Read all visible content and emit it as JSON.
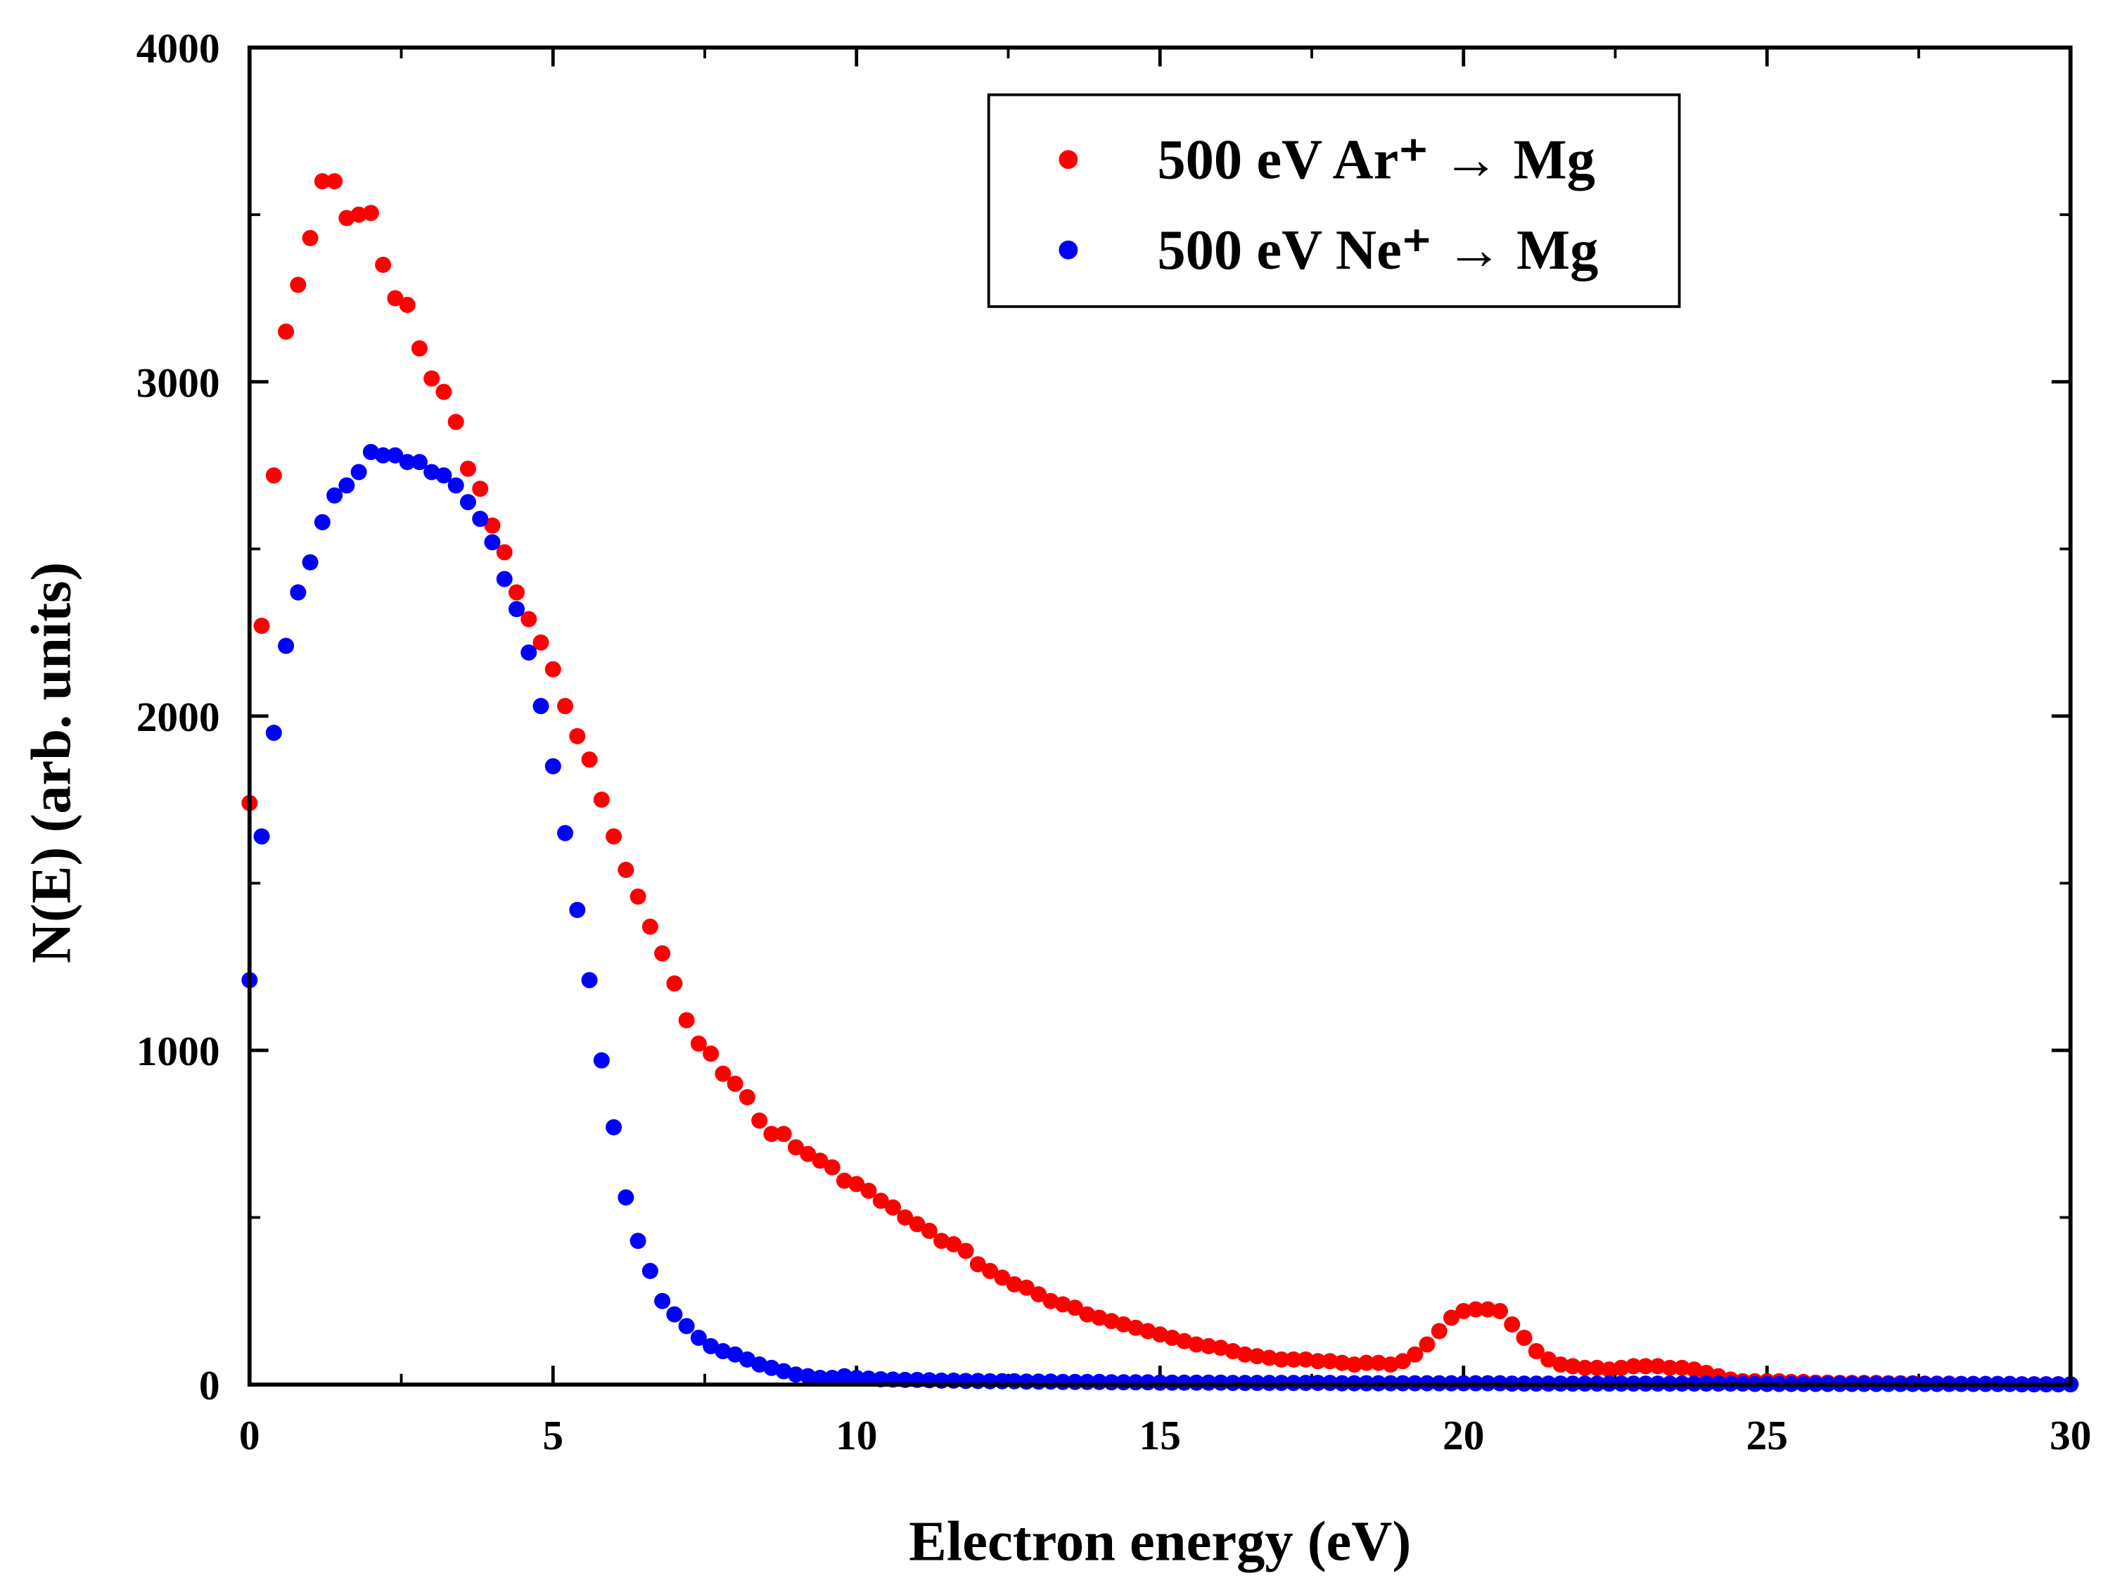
{
  "chart_data": {
    "type": "scatter",
    "xlabel": "Electron energy (eV)",
    "ylabel": "N(E) (arb. units)",
    "xlim": [
      0,
      30
    ],
    "ylim": [
      0,
      4000
    ],
    "xticks": [
      0,
      5,
      10,
      15,
      20,
      25,
      30
    ],
    "yticks": [
      0,
      1000,
      2000,
      3000,
      4000
    ],
    "legend": "upper right",
    "x": [
      0,
      0.2,
      0.4,
      0.6,
      0.8,
      1,
      1.2,
      1.4,
      1.6,
      1.8,
      2,
      2.2,
      2.4,
      2.6,
      2.8,
      3,
      3.2,
      3.4,
      3.6,
      3.8,
      4,
      4.2,
      4.4,
      4.6,
      4.8,
      5,
      5.2,
      5.4,
      5.6,
      5.8,
      6,
      6.2,
      6.4,
      6.6,
      6.8,
      7,
      7.2,
      7.4,
      7.6,
      7.8,
      8,
      8.2,
      8.4,
      8.6,
      8.8,
      9,
      9.2,
      9.4,
      9.6,
      9.8,
      10,
      10.2,
      10.4,
      10.6,
      10.8,
      11,
      11.2,
      11.4,
      11.6,
      11.8,
      12,
      12.2,
      12.4,
      12.6,
      12.8,
      13,
      13.2,
      13.4,
      13.6,
      13.8,
      14,
      14.2,
      14.4,
      14.6,
      14.8,
      15,
      15.2,
      15.4,
      15.6,
      15.8,
      16,
      16.2,
      16.4,
      16.6,
      16.8,
      17,
      17.2,
      17.4,
      17.6,
      17.8,
      18,
      18.2,
      18.4,
      18.6,
      18.8,
      19,
      19.2,
      19.4,
      19.6,
      19.8,
      20,
      20.2,
      20.4,
      20.6,
      20.8,
      21,
      21.2,
      21.4,
      21.6,
      21.8,
      22,
      22.2,
      22.4,
      22.6,
      22.8,
      23,
      23.2,
      23.4,
      23.6,
      23.8,
      24,
      24.2,
      24.4,
      24.6,
      24.8,
      25,
      25.2,
      25.4,
      25.6,
      25.8,
      26,
      26.2,
      26.4,
      26.6,
      26.8,
      27,
      27.2,
      27.4,
      27.6,
      27.8,
      28,
      28.2,
      28.4,
      28.6,
      28.8,
      29,
      29.2,
      29.4,
      29.6,
      29.8,
      30
    ],
    "series": [
      {
        "name": "500 eV Ar⁺ → Mg",
        "color": "#ff0000",
        "values": [
          1740,
          2270,
          2720,
          3150,
          3290,
          3430,
          3600,
          3600,
          3490,
          3500,
          3505,
          3350,
          3250,
          3230,
          3100,
          3010,
          2970,
          2880,
          2740,
          2680,
          2570,
          2490,
          2370,
          2290,
          2220,
          2140,
          2030,
          1940,
          1870,
          1750,
          1640,
          1540,
          1460,
          1370,
          1290,
          1200,
          1090,
          1020,
          990,
          930,
          900,
          860,
          790,
          750,
          750,
          710,
          690,
          670,
          650,
          610,
          600,
          580,
          550,
          530,
          500,
          480,
          460,
          430,
          420,
          400,
          360,
          340,
          320,
          300,
          290,
          270,
          250,
          240,
          230,
          210,
          200,
          190,
          180,
          170,
          160,
          150,
          140,
          130,
          120,
          115,
          110,
          100,
          90,
          85,
          80,
          75,
          75,
          75,
          70,
          70,
          65,
          60,
          65,
          65,
          60,
          70,
          90,
          120,
          160,
          200,
          220,
          225,
          225,
          220,
          180,
          140,
          100,
          75,
          60,
          55,
          50,
          50,
          45,
          50,
          55,
          55,
          55,
          50,
          50,
          45,
          35,
          25,
          15,
          10,
          10,
          10,
          10,
          8,
          8,
          6,
          6,
          5,
          5,
          5,
          5,
          4,
          4,
          4,
          3,
          3,
          3,
          2,
          2,
          2,
          2,
          2,
          1,
          1,
          1,
          1,
          1
        ]
      },
      {
        "name": "500 eV Ne⁺ → Mg",
        "color": "#0000ff",
        "values": [
          1210,
          1640,
          1950,
          2210,
          2370,
          2460,
          2580,
          2660,
          2690,
          2730,
          2790,
          2780,
          2780,
          2760,
          2760,
          2730,
          2720,
          2690,
          2640,
          2590,
          2520,
          2410,
          2320,
          2190,
          2030,
          1850,
          1650,
          1420,
          1210,
          970,
          770,
          560,
          430,
          340,
          250,
          210,
          175,
          140,
          115,
          100,
          90,
          75,
          60,
          50,
          40,
          30,
          25,
          20,
          20,
          25,
          20,
          18,
          16,
          15,
          14,
          14,
          13,
          12,
          12,
          11,
          11,
          10,
          10,
          10,
          9,
          9,
          9,
          8,
          8,
          8,
          8,
          7,
          7,
          7,
          7,
          6,
          6,
          6,
          6,
          6,
          6,
          5,
          5,
          5,
          5,
          5,
          5,
          5,
          5,
          5,
          4,
          4,
          4,
          4,
          4,
          4,
          4,
          4,
          4,
          4,
          4,
          4,
          4,
          4,
          3,
          3,
          3,
          3,
          3,
          3,
          3,
          3,
          3,
          3,
          3,
          3,
          3,
          3,
          3,
          3,
          3,
          3,
          3,
          3,
          2,
          2,
          2,
          2,
          2,
          2,
          2,
          2,
          2,
          2,
          2,
          2,
          2,
          2,
          2,
          2,
          2,
          2,
          2,
          2,
          2,
          2,
          1,
          1,
          1,
          1,
          1
        ]
      }
    ]
  }
}
